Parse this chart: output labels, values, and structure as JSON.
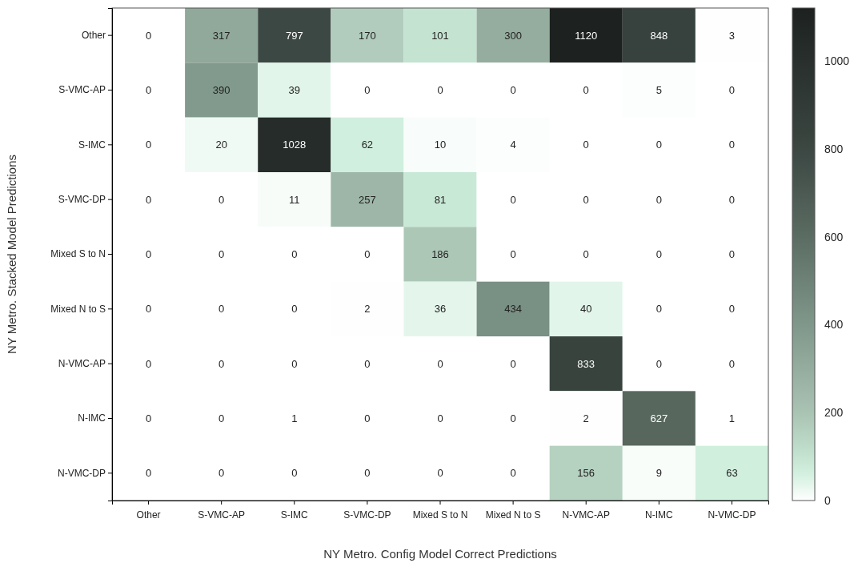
{
  "chart_data": {
    "type": "heatmap",
    "xlabel": "NY Metro. Config Model Correct Predictions",
    "ylabel": "NY Metro. Stacked Model Predictions",
    "categories": [
      "Other",
      "S-VMC-AP",
      "S-IMC",
      "S-VMC-DP",
      "Mixed S to N",
      "Mixed N to S",
      "N-VMC-AP",
      "N-IMC",
      "N-VMC-DP"
    ],
    "y_categories": [
      "Other",
      "S-VMC-AP",
      "S-IMC",
      "S-VMC-DP",
      "Mixed S to N",
      "Mixed N to S",
      "N-VMC-AP",
      "N-IMC",
      "N-VMC-DP"
    ],
    "cells": [
      [
        0,
        317,
        797,
        170,
        101,
        300,
        1120,
        848,
        3
      ],
      [
        0,
        390,
        39,
        0,
        0,
        0,
        0,
        5,
        0
      ],
      [
        0,
        20,
        1028,
        62,
        10,
        4,
        0,
        0,
        0
      ],
      [
        0,
        0,
        11,
        257,
        81,
        0,
        0,
        0,
        0
      ],
      [
        0,
        0,
        0,
        0,
        186,
        0,
        0,
        0,
        0
      ],
      [
        0,
        0,
        0,
        2,
        36,
        434,
        40,
        0,
        0
      ],
      [
        0,
        0,
        0,
        0,
        0,
        0,
        833,
        0,
        0
      ],
      [
        0,
        0,
        1,
        0,
        0,
        0,
        2,
        627,
        1
      ],
      [
        0,
        0,
        0,
        0,
        0,
        0,
        156,
        9,
        63
      ]
    ],
    "clim": [
      0,
      1120
    ],
    "cticks": [
      0,
      200,
      400,
      600,
      800,
      1000
    ],
    "data_labels": true
  }
}
